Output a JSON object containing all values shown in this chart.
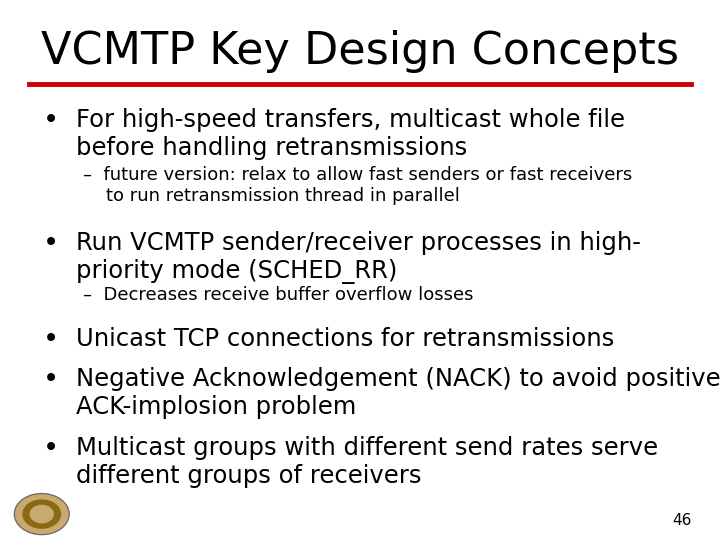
{
  "title": "VCMTP Key Design Concepts",
  "title_fontsize": 32,
  "title_color": "#000000",
  "separator_color": "#cc0000",
  "background_color": "#ffffff",
  "slide_number": "46",
  "bullet1_main": "For high-speed transfers, multicast whole file\nbefore handling retransmissions",
  "bullet1_sub": "–  future version: relax to allow fast senders or fast receivers\n    to run retransmission thread in parallel",
  "bullet2_main": "Run VCMTP sender/receiver processes in high-\npriority mode (SCHED_RR)",
  "bullet2_sub": "–  Decreases receive buffer overflow losses",
  "bullet3_main": "Unicast TCP connections for retransmissions",
  "bullet4_main": "Negative Acknowledgement (NACK) to avoid positive\nACK-implosion problem",
  "bullet5_main": "Multicast groups with different send rates serve\ndifferent groups of receivers",
  "main_fontsize": 17.5,
  "sub_fontsize": 13,
  "text_color": "#000000",
  "font_family": "DejaVu Sans"
}
